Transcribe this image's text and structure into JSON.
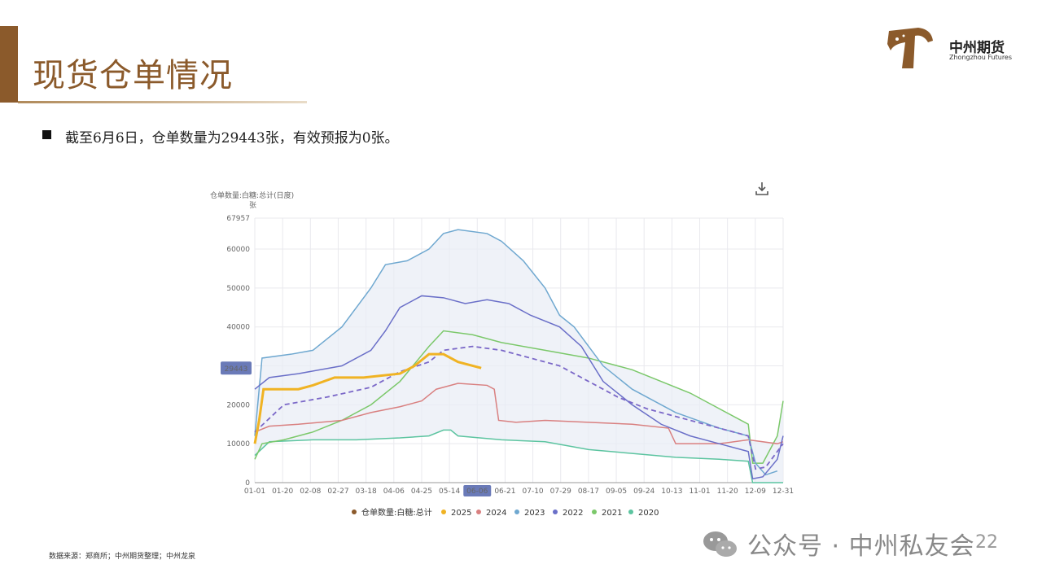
{
  "header": {
    "title": "现货仓单情况",
    "company_name": "中州期货",
    "company_name_en": "Zhongzhou Futures"
  },
  "summary": {
    "text": "截至6月6日，仓单数量为29443张，有效预报为0张。"
  },
  "footer": {
    "source": "数据来源：郑商所；中州期货整理；中州龙泉",
    "watermark": "公众号 · 中州私友会",
    "page_number": "22"
  },
  "colors": {
    "brand": "#8b5a2b",
    "s2025": "#f0b323",
    "s2024": "#d98080",
    "s2023": "#6fa8d0",
    "s2022": "#6a6fc8",
    "s2021": "#7bc86a",
    "s2020": "#5cc4a0",
    "avg": "#7b68c8",
    "band": "#e8ecf5"
  },
  "chart_data": {
    "type": "line",
    "title": "仓单数量:白糖:总计(日度)",
    "ylabel": "张",
    "ylim": [
      0,
      67957
    ],
    "yticks": [
      0,
      10000,
      20000,
      30000,
      40000,
      50000,
      60000,
      67957
    ],
    "xticks": [
      "01-01",
      "01-20",
      "02-08",
      "02-27",
      "03-18",
      "04-06",
      "04-25",
      "05-14",
      "06-06",
      "06-21",
      "07-10",
      "07-29",
      "08-17",
      "09-05",
      "09-24",
      "10-13",
      "11-01",
      "11-20",
      "12-09",
      "12-31"
    ],
    "current_label": "29443",
    "current_date": "06-06",
    "legend": [
      "仓单数量:白糖:总计",
      "2025",
      "2024",
      "2023",
      "2022",
      "2021",
      "2020"
    ],
    "series": [
      {
        "name": "2025",
        "points": [
          [
            0,
            10000
          ],
          [
            3,
            16000
          ],
          [
            6,
            24000
          ],
          [
            15,
            24000
          ],
          [
            30,
            24000
          ],
          [
            40,
            25000
          ],
          [
            55,
            27000
          ],
          [
            75,
            27000
          ],
          [
            100,
            28000
          ],
          [
            110,
            30000
          ],
          [
            120,
            33000
          ],
          [
            130,
            33000
          ],
          [
            140,
            31000
          ],
          [
            156,
            29443
          ]
        ]
      },
      {
        "name": "2024",
        "points": [
          [
            0,
            13000
          ],
          [
            10,
            14500
          ],
          [
            30,
            15000
          ],
          [
            60,
            16000
          ],
          [
            80,
            18000
          ],
          [
            100,
            19500
          ],
          [
            115,
            21000
          ],
          [
            125,
            24000
          ],
          [
            140,
            25500
          ],
          [
            160,
            25000
          ],
          [
            165,
            24000
          ],
          [
            168,
            16000
          ],
          [
            180,
            15500
          ],
          [
            200,
            16000
          ],
          [
            230,
            15500
          ],
          [
            260,
            15000
          ],
          [
            285,
            14000
          ],
          [
            290,
            10000
          ],
          [
            320,
            10000
          ],
          [
            340,
            11000
          ],
          [
            360,
            10000
          ],
          [
            364,
            10500
          ]
        ]
      },
      {
        "name": "2023",
        "points": [
          [
            0,
            12000
          ],
          [
            5,
            32000
          ],
          [
            25,
            33000
          ],
          [
            40,
            34000
          ],
          [
            60,
            40000
          ],
          [
            70,
            45000
          ],
          [
            80,
            50000
          ],
          [
            90,
            56000
          ],
          [
            105,
            57000
          ],
          [
            120,
            60000
          ],
          [
            130,
            64000
          ],
          [
            140,
            65000
          ],
          [
            160,
            64000
          ],
          [
            170,
            62000
          ],
          [
            185,
            57000
          ],
          [
            200,
            50000
          ],
          [
            210,
            43000
          ],
          [
            220,
            40000
          ],
          [
            240,
            30000
          ],
          [
            260,
            24000
          ],
          [
            290,
            18000
          ],
          [
            320,
            14000
          ],
          [
            340,
            12000
          ],
          [
            345,
            5000
          ],
          [
            352,
            2000
          ],
          [
            360,
            3000
          ]
        ]
      },
      {
        "name": "2022",
        "points": [
          [
            0,
            24000
          ],
          [
            10,
            27000
          ],
          [
            30,
            28000
          ],
          [
            60,
            30000
          ],
          [
            80,
            34000
          ],
          [
            90,
            39000
          ],
          [
            100,
            45000
          ],
          [
            115,
            48000
          ],
          [
            130,
            47500
          ],
          [
            145,
            46000
          ],
          [
            160,
            47000
          ],
          [
            175,
            46000
          ],
          [
            190,
            43000
          ],
          [
            210,
            40000
          ],
          [
            225,
            35000
          ],
          [
            240,
            26000
          ],
          [
            260,
            20000
          ],
          [
            280,
            15000
          ],
          [
            300,
            12000
          ],
          [
            320,
            10000
          ],
          [
            340,
            8000
          ],
          [
            343,
            1000
          ],
          [
            350,
            1500
          ],
          [
            360,
            6000
          ],
          [
            364,
            12000
          ]
        ]
      },
      {
        "name": "2021",
        "points": [
          [
            0,
            6000
          ],
          [
            5,
            10000
          ],
          [
            20,
            11000
          ],
          [
            40,
            13000
          ],
          [
            60,
            16000
          ],
          [
            80,
            20000
          ],
          [
            100,
            26000
          ],
          [
            120,
            35000
          ],
          [
            130,
            39000
          ],
          [
            150,
            38000
          ],
          [
            170,
            36000
          ],
          [
            200,
            34000
          ],
          [
            230,
            32000
          ],
          [
            260,
            29000
          ],
          [
            280,
            26000
          ],
          [
            300,
            23000
          ],
          [
            320,
            19000
          ],
          [
            340,
            15000
          ],
          [
            343,
            5000
          ],
          [
            350,
            5000
          ],
          [
            360,
            12000
          ],
          [
            364,
            21000
          ]
        ]
      },
      {
        "name": "2020",
        "points": [
          [
            0,
            7000
          ],
          [
            10,
            10500
          ],
          [
            40,
            11000
          ],
          [
            70,
            11000
          ],
          [
            100,
            11500
          ],
          [
            120,
            12000
          ],
          [
            130,
            13500
          ],
          [
            135,
            13500
          ],
          [
            140,
            12000
          ],
          [
            170,
            11000
          ],
          [
            200,
            10500
          ],
          [
            230,
            8500
          ],
          [
            260,
            7500
          ],
          [
            290,
            6500
          ],
          [
            320,
            6000
          ],
          [
            340,
            5500
          ],
          [
            343,
            0
          ],
          [
            350,
            0
          ],
          [
            360,
            0
          ],
          [
            364,
            0
          ]
        ]
      },
      {
        "name": "avg",
        "points": [
          [
            0,
            13000
          ],
          [
            20,
            20000
          ],
          [
            50,
            22000
          ],
          [
            80,
            24500
          ],
          [
            100,
            28500
          ],
          [
            120,
            31000
          ],
          [
            130,
            34000
          ],
          [
            150,
            35000
          ],
          [
            170,
            34000
          ],
          [
            190,
            32000
          ],
          [
            210,
            30000
          ],
          [
            230,
            26000
          ],
          [
            250,
            22000
          ],
          [
            270,
            19000
          ],
          [
            300,
            16000
          ],
          [
            320,
            14000
          ],
          [
            340,
            12000
          ],
          [
            345,
            3500
          ],
          [
            352,
            4000
          ],
          [
            364,
            10000
          ]
        ]
      }
    ]
  }
}
